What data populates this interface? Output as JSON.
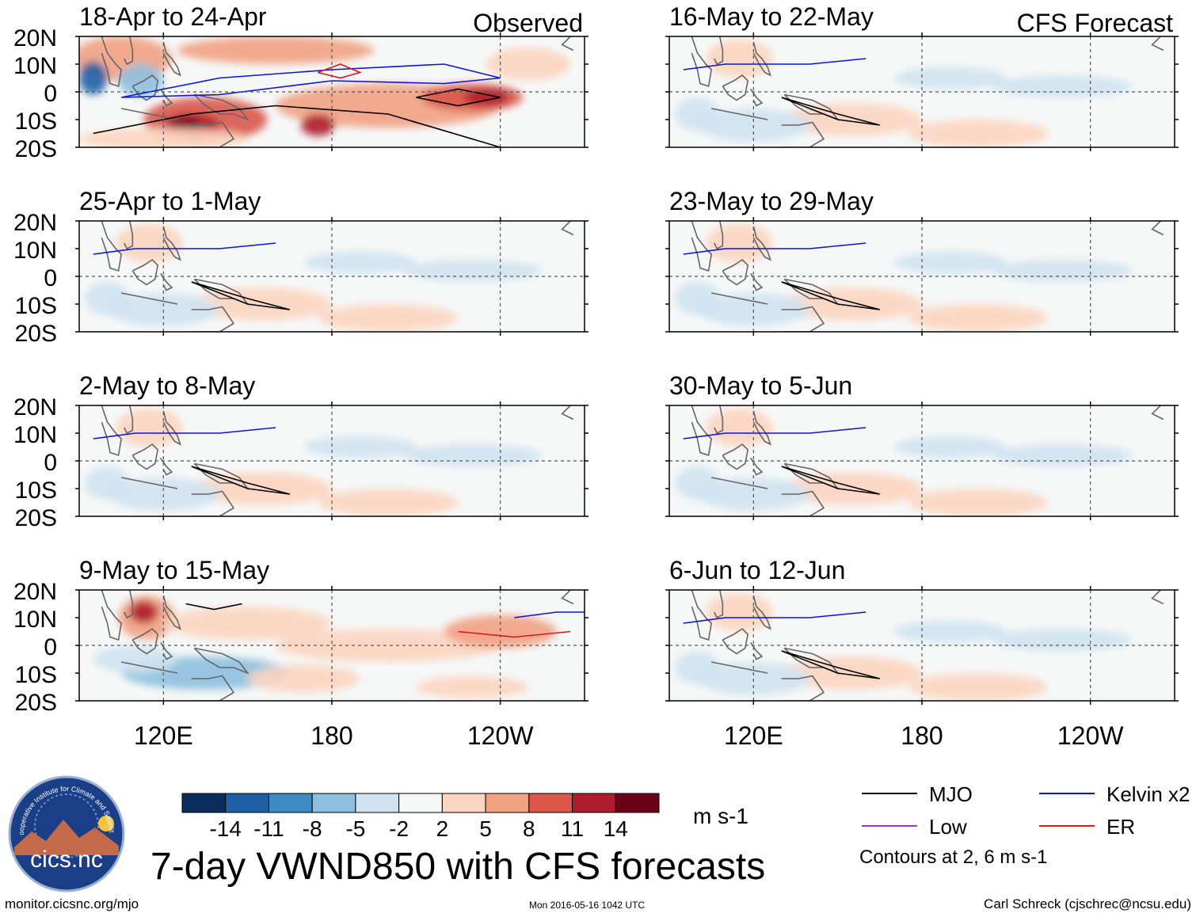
{
  "figure": {
    "title": "7-day VWND850 with CFS forecasts",
    "left_column_label": "Observed",
    "right_column_label": "CFS Forecast",
    "website": "monitor.cicsnc.org/mjo",
    "timestamp": "Mon 2016-05-16 1042 UTC",
    "author": "Carl Schreck (cjschrec@ncsu.edu)",
    "logo_text": "cics.nc",
    "logo_ring_text": "Cooperative Institute for Climate and Satellites"
  },
  "chart_data": {
    "type": "heatmap",
    "variable": "VWND850",
    "units": "m s-1",
    "lat_ticks": [
      "20N",
      "10N",
      "0",
      "10S",
      "20S"
    ],
    "lat_values": [
      20,
      10,
      0,
      -10,
      -20
    ],
    "lon_ticks": [
      "120E",
      "180",
      "120W"
    ],
    "lon_values": [
      120,
      180,
      240
    ],
    "lon_range": [
      90,
      270
    ],
    "lat_range": [
      -20,
      20
    ],
    "colorbar": {
      "levels": [
        -14,
        -11,
        -8,
        -5,
        -2,
        2,
        5,
        8,
        11,
        14
      ],
      "labels": [
        "-14",
        "-11",
        "-8",
        "-5",
        "-2",
        "2",
        "5",
        "8",
        "11",
        "14"
      ],
      "colors": [
        "#0b2d5c",
        "#1f5fa5",
        "#3d8bc4",
        "#8dc0de",
        "#cfe3f1",
        "#f6f8f8",
        "#fcd5c0",
        "#f1a283",
        "#d9584a",
        "#ae1d2b",
        "#6b0218"
      ]
    },
    "legend": {
      "items": [
        {
          "label": "MJO",
          "color": "#000000"
        },
        {
          "label": "Kelvin x2",
          "color": "#0a14d8"
        },
        {
          "label": "Low",
          "color": "#9a32e0"
        },
        {
          "label": "ER",
          "color": "#e0141e"
        }
      ],
      "note": "Contours at 2, 6 m s-1"
    },
    "panels": [
      {
        "period": "18-Apr to 24-Apr",
        "column": "Observed",
        "intensity": "strong"
      },
      {
        "period": "25-Apr to 1-May",
        "column": "Observed",
        "intensity": "weak"
      },
      {
        "period": "2-May to 8-May",
        "column": "Observed",
        "intensity": "weak"
      },
      {
        "period": "9-May to 15-May",
        "column": "Observed",
        "intensity": "moderate"
      },
      {
        "period": "16-May to 22-May",
        "column": "CFS Forecast",
        "intensity": "weak"
      },
      {
        "period": "23-May to 29-May",
        "column": "CFS Forecast",
        "intensity": "weak"
      },
      {
        "period": "30-May to 5-Jun",
        "column": "CFS Forecast",
        "intensity": "weak"
      },
      {
        "period": "6-Jun to 12-Jun",
        "column": "CFS Forecast",
        "intensity": "weak"
      }
    ]
  }
}
